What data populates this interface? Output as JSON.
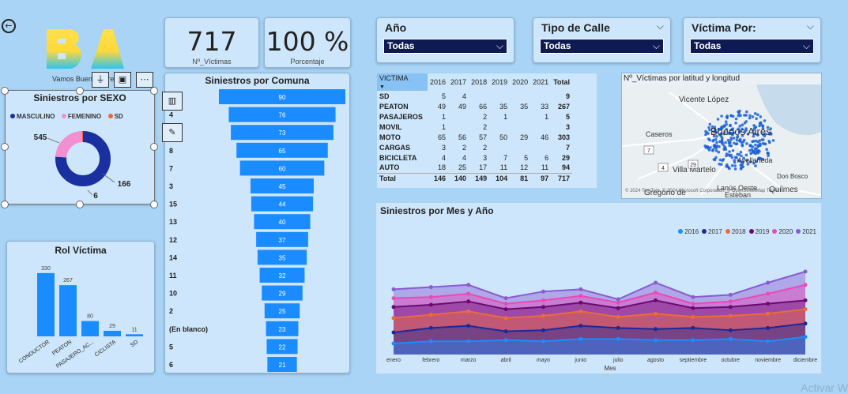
{
  "logo": {
    "subtitle": "Vamos Buenos Aires"
  },
  "kpis": [
    {
      "value": "717",
      "label": "Nº_Víctimas"
    },
    {
      "value": "100 %",
      "label": "Porcentaje"
    }
  ],
  "slicers": [
    {
      "title": "Año",
      "value": "Todas"
    },
    {
      "title": "Tipo de Calle",
      "value": "Todas"
    },
    {
      "title": "Víctima Por:",
      "value": "Todas"
    }
  ],
  "visual_header_icons": [
    "filter-icon",
    "focus-mode-icon",
    "more-options-icon"
  ],
  "colors": {
    "accent": "#1a8cff",
    "slicer_box": "#0e1b52",
    "donut_masculino": "#1a2fa0",
    "donut_femenino": "#f28fd0",
    "donut_sd": "#e8663d"
  },
  "sexo_chart": {
    "title": "Siniestros por SEXO",
    "legend": [
      {
        "label": "MASCULINO",
        "color": "#1a2fa0"
      },
      {
        "label": "FEMENINO",
        "color": "#f28fd0"
      },
      {
        "label": "SD",
        "color": "#e8663d"
      }
    ],
    "values": [
      545,
      166,
      6
    ],
    "labels": [
      "545",
      "166",
      "6"
    ]
  },
  "rol_chart": {
    "title": "Rol Víctima",
    "categories": [
      "CONDUCTOR",
      "PEATON",
      "PASAJERO_AC...",
      "CICLISTA",
      "SD"
    ],
    "values": [
      330,
      267,
      80,
      29,
      11
    ],
    "labels": [
      "330",
      "267",
      "80",
      "29",
      "11"
    ]
  },
  "comuna_chart": {
    "title": "Siniestros por Comuna",
    "side_icons": [
      "bar-chart-icon",
      "brush-icon"
    ],
    "categories": [
      "1",
      "4",
      "9",
      "8",
      "7",
      "3",
      "15",
      "13",
      "12",
      "14",
      "11",
      "10",
      "2",
      "(En blanco)",
      "5",
      "6"
    ],
    "values": [
      90,
      76,
      73,
      65,
      60,
      45,
      44,
      40,
      37,
      35,
      32,
      29,
      25,
      23,
      22,
      21
    ],
    "labels": [
      "90",
      "76",
      "73",
      "65",
      "60",
      "45",
      "44",
      "40",
      "37",
      "35",
      "32",
      "29",
      "25",
      "23",
      "22",
      "21"
    ]
  },
  "matrix": {
    "corner": "VICTIMA",
    "columns": [
      "2016",
      "2017",
      "2018",
      "2019",
      "2020",
      "2021",
      "Total"
    ],
    "rows": [
      {
        "label": "SD",
        "cells": [
          "5",
          "4",
          "",
          "",
          "",
          "",
          "9"
        ]
      },
      {
        "label": "PEATON",
        "cells": [
          "49",
          "49",
          "66",
          "35",
          "35",
          "33",
          "267"
        ]
      },
      {
        "label": "PASAJEROS",
        "cells": [
          "1",
          "",
          "2",
          "1",
          "",
          "1",
          "5"
        ]
      },
      {
        "label": "MOVIL",
        "cells": [
          "1",
          "",
          "2",
          "",
          "",
          "",
          "3"
        ]
      },
      {
        "label": "MOTO",
        "cells": [
          "65",
          "56",
          "57",
          "50",
          "29",
          "46",
          "303"
        ]
      },
      {
        "label": "CARGAS",
        "cells": [
          "3",
          "2",
          "2",
          "",
          "",
          "",
          "7"
        ]
      },
      {
        "label": "BICICLETA",
        "cells": [
          "4",
          "4",
          "3",
          "7",
          "5",
          "6",
          "29"
        ]
      },
      {
        "label": "AUTO",
        "cells": [
          "18",
          "25",
          "17",
          "11",
          "12",
          "11",
          "94"
        ]
      }
    ],
    "total": {
      "label": "Total",
      "cells": [
        "146",
        "140",
        "149",
        "104",
        "81",
        "97",
        "717"
      ]
    }
  },
  "map": {
    "title": "Nº_Víctimas por latitud y longitud",
    "places": [
      "Vicente López",
      "Caseros",
      "Buenos Aires",
      "Villa Martelo",
      "Avellaneda",
      "Don Bosco",
      "Lanús Oeste",
      "Quilmes",
      "Gregorio de",
      "Esteban"
    ],
    "roads": [
      "7",
      "4",
      "29"
    ],
    "attribution": "© 2024 TomTom, © 2024 Microsoft Corporation, © OpenStreetMap Terms"
  },
  "monthly_chart": {
    "title": "Siniestros por Mes y Año",
    "xlabel": "Mes"
  },
  "chart_data": [
    {
      "type": "pie",
      "title": "Siniestros por SEXO",
      "categories": [
        "MASCULINO",
        "FEMENINO",
        "SD"
      ],
      "values": [
        545,
        166,
        6
      ]
    },
    {
      "type": "bar",
      "title": "Rol Víctima",
      "categories": [
        "CONDUCTOR",
        "PEATON",
        "PASAJERO_AC...",
        "CICLISTA",
        "SD"
      ],
      "values": [
        330,
        267,
        80,
        29,
        11
      ]
    },
    {
      "type": "bar",
      "title": "Siniestros por Comuna",
      "categories": [
        "1",
        "4",
        "9",
        "8",
        "7",
        "3",
        "15",
        "13",
        "12",
        "14",
        "11",
        "10",
        "2",
        "(En blanco)",
        "5",
        "6"
      ],
      "values": [
        90,
        76,
        73,
        65,
        60,
        45,
        44,
        40,
        37,
        35,
        32,
        29,
        25,
        23,
        22,
        21
      ]
    },
    {
      "type": "area",
      "title": "Siniestros por Mes y Año",
      "xlabel": "Mes",
      "ylabel": "",
      "categories": [
        "enero",
        "febrero",
        "marzo",
        "abril",
        "mayo",
        "junio",
        "julio",
        "agosto",
        "septiembre",
        "octubre",
        "noviembre",
        "diciembre"
      ],
      "stacked": true,
      "legend_position": "top-right",
      "series": [
        {
          "name": "2016",
          "color": "#1a8cff",
          "values": [
            10,
            12,
            12,
            13,
            12,
            14,
            14,
            13,
            13,
            14,
            12,
            16
          ]
        },
        {
          "name": "2017",
          "color": "#1c2a99",
          "values": [
            10,
            12,
            14,
            8,
            10,
            12,
            10,
            10,
            11,
            8,
            12,
            12
          ]
        },
        {
          "name": "2018",
          "color": "#ec6b3a",
          "values": [
            13,
            12,
            13,
            12,
            13,
            13,
            10,
            14,
            10,
            13,
            13,
            13
          ]
        },
        {
          "name": "2019",
          "color": "#6b0a73",
          "values": [
            10,
            9,
            9,
            8,
            8,
            8,
            8,
            12,
            8,
            8,
            9,
            8
          ]
        },
        {
          "name": "2020",
          "color": "#e94ab8",
          "values": [
            8,
            7,
            7,
            5,
            6,
            6,
            5,
            7,
            4,
            5,
            9,
            14
          ]
        },
        {
          "name": "2021",
          "color": "#8a5bd1",
          "values": [
            8,
            9,
            8,
            5,
            8,
            6,
            3,
            9,
            6,
            6,
            10,
            12
          ]
        }
      ]
    }
  ]
}
